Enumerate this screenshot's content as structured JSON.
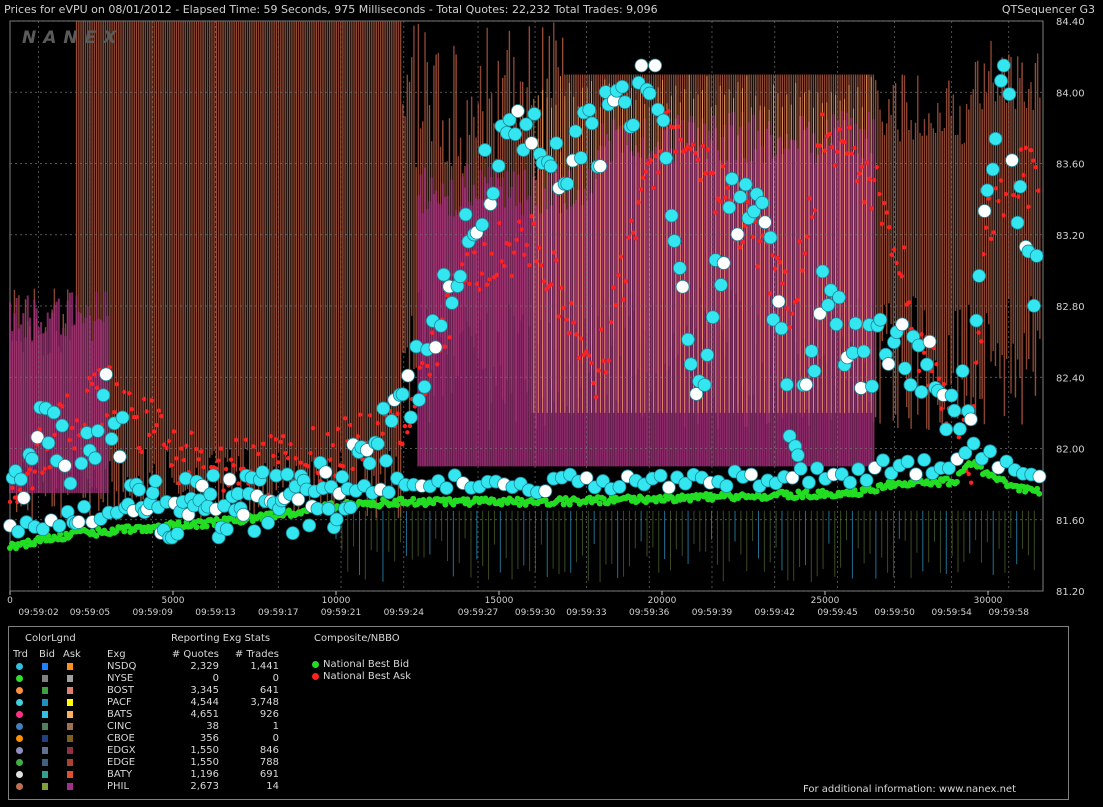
{
  "header": {
    "title": "Prices for  eVPU  on  08/01/2012  -  Elapsed Time: 59 Seconds, 975 Milliseconds  -  Total Quotes: 22,232  Total Trades: 9,096",
    "app": "QTSequencer G3"
  },
  "watermark": "NANEX",
  "chart_data": {
    "type": "scatter",
    "title": "Prices for eVPU on 08/01/2012",
    "xlabel": "",
    "ylabel": "",
    "grid": true,
    "ylim": [
      81.2,
      84.4
    ],
    "xlim": [
      0,
      32000
    ],
    "y_ticks": [
      "84.40",
      "84.00",
      "83.60",
      "83.20",
      "82.80",
      "82.40",
      "82.00",
      "81.60",
      "81.20"
    ],
    "y_tick_values": [
      84.4,
      84.0,
      83.6,
      83.2,
      82.8,
      82.4,
      82.0,
      81.6,
      81.2
    ],
    "x_seq_ticks": [
      "0",
      "5000",
      "10000",
      "15000",
      "20000",
      "25000",
      "30000"
    ],
    "x_seq_values": [
      0,
      5000,
      10000,
      15000,
      20000,
      25000,
      30000
    ],
    "x_time_ticks": [
      "09:59:02",
      "09:59:05",
      "09:59:09",
      "09:59:13",
      "09:59:17",
      "09:59:21",
      "09:59:24",
      "09:59:27",
      "09:59:30",
      "09:59:33",
      "09:59:36",
      "09:59:39",
      "09:59:42",
      "09:59:45",
      "09:59:50",
      "09:59:54",
      "09:59:58"
    ],
    "x_time_positions": [
      1000,
      2800,
      5000,
      7200,
      9400,
      11600,
      13800,
      16400,
      18400,
      20200,
      22400,
      24600,
      26800,
      29000,
      31000,
      33000,
      35000
    ],
    "series": [
      {
        "name": "National Best Bid",
        "color": "#22dd22",
        "x": [
          0,
          2000,
          4000,
          6000,
          8000,
          10000,
          12000,
          14000,
          16000,
          18000,
          20000,
          22000,
          24000,
          26000,
          27000,
          28000,
          29000,
          29500,
          30000,
          31000,
          32000
        ],
        "y": [
          81.45,
          81.52,
          81.55,
          81.58,
          81.62,
          81.68,
          81.7,
          81.7,
          81.7,
          81.71,
          81.72,
          81.73,
          81.74,
          81.75,
          81.8,
          81.8,
          81.82,
          81.92,
          81.85,
          81.77,
          81.75
        ]
      },
      {
        "name": "National Best Ask",
        "color": "#ff2020",
        "x": [
          0,
          1500,
          3000,
          6000,
          8000,
          10000,
          12000,
          14000,
          16000,
          18000,
          20000,
          22000,
          24000,
          25000,
          26000,
          27000,
          28000,
          29000,
          29500,
          30000,
          31000,
          32000
        ],
        "y": [
          81.8,
          82.1,
          82.3,
          81.85,
          81.9,
          82.0,
          82.1,
          83.0,
          83.2,
          82.4,
          83.8,
          83.4,
          82.8,
          83.8,
          83.6,
          83.3,
          82.5,
          82.2,
          81.95,
          83.3,
          83.6,
          83.3
        ]
      },
      {
        "name": "Trades",
        "color": "#33e6f0",
        "x": [
          0,
          1000,
          2000,
          3000,
          4000,
          5000,
          6000,
          8000,
          10000,
          11000,
          12000,
          13000,
          14000,
          15000,
          16000,
          17000,
          18000,
          19000,
          20000,
          21000,
          22000,
          23000,
          24000,
          25000,
          26000,
          27000,
          28000,
          29000,
          29500,
          30000,
          30500,
          31000,
          31500
        ],
        "y": [
          81.6,
          82.3,
          81.7,
          82.3,
          81.6,
          81.65,
          81.65,
          81.7,
          81.75,
          82.0,
          82.2,
          82.6,
          83.2,
          83.7,
          83.8,
          83.6,
          83.75,
          84.0,
          84.0,
          82.1,
          83.3,
          83.5,
          82.0,
          82.9,
          82.5,
          82.6,
          82.5,
          82.2,
          82.3,
          83.5,
          84.1,
          83.3,
          82.9
        ]
      }
    ]
  },
  "legend": {
    "heading_colorlgnd": "ColorLgnd",
    "heading_stats": "Reporting Exg Stats",
    "heading_composite": "Composite/NBBO",
    "col_trd": "Trd",
    "col_bid": "Bid",
    "col_ask": "Ask",
    "col_exg": "Exg",
    "col_quotes": "# Quotes",
    "col_trades": "# Trades",
    "exchanges": [
      {
        "name": "NSDQ",
        "quotes": "2,329",
        "trades": "1,441",
        "trd": "#30c0e0",
        "bid": "#2080ff",
        "ask": "#ff9020"
      },
      {
        "name": "NYSE",
        "quotes": "0",
        "trades": "0",
        "trd": "#30e030",
        "bid": "#808080",
        "ask": "#a0a0a0"
      },
      {
        "name": "BOST",
        "quotes": "3,345",
        "trades": "641",
        "trd": "#ff9040",
        "bid": "#40a040",
        "ask": "#e08070"
      },
      {
        "name": "PACF",
        "quotes": "4,544",
        "trades": "3,748",
        "trd": "#40d0e0",
        "bid": "#2090c0",
        "ask": "#ffff00"
      },
      {
        "name": "BATS",
        "quotes": "4,651",
        "trades": "926",
        "trd": "#ff3080",
        "bid": "#30c0e0",
        "ask": "#ffb060"
      },
      {
        "name": "CINC",
        "quotes": "38",
        "trades": "1",
        "trd": "#4080c0",
        "bid": "#508060",
        "ask": "#a07050"
      },
      {
        "name": "CBOE",
        "quotes": "356",
        "trades": "0",
        "trd": "#ff9000",
        "bid": "#204080",
        "ask": "#806020"
      },
      {
        "name": "EDGX",
        "quotes": "1,550",
        "trades": "846",
        "trd": "#9090c0",
        "bid": "#607090",
        "ask": "#903040"
      },
      {
        "name": "EDGE",
        "quotes": "1,550",
        "trades": "788",
        "trd": "#40b040",
        "bid": "#406080",
        "ask": "#b04030"
      },
      {
        "name": "BATY",
        "quotes": "1,196",
        "trades": "691",
        "trd": "#e0e0e0",
        "bid": "#30a090",
        "ask": "#e05030"
      },
      {
        "name": "PHIL",
        "quotes": "2,673",
        "trades": "14",
        "trd": "#c07050",
        "bid": "#80a040",
        "ask": "#a03090"
      }
    ],
    "nbbo": [
      {
        "label": "National Best Bid",
        "color": "#22dd22"
      },
      {
        "label": "National Best Ask",
        "color": "#ff2020"
      }
    ],
    "footer": "For additional information: www.nanex.net"
  }
}
